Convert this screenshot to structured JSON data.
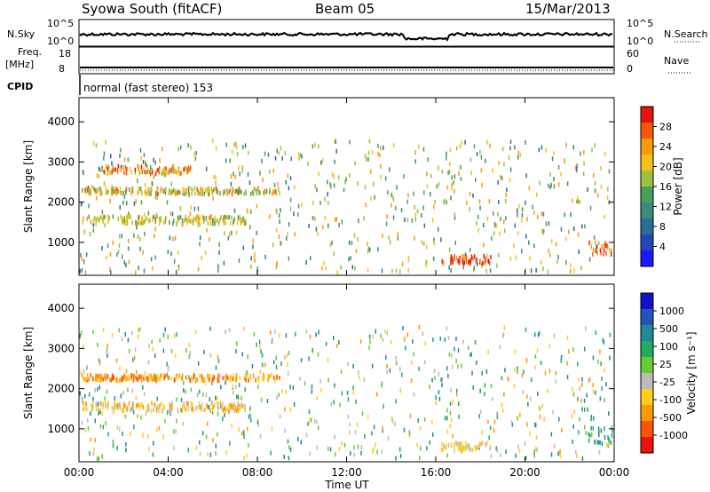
{
  "header": {
    "title": "Syowa South (fitACF)",
    "beam": "Beam 05",
    "date": "15/Mar/2013"
  },
  "side_labels": {
    "nsky": "N.Sky",
    "freq": "Freq.",
    "freq_unit": "[MHz]",
    "cpid": "CPID",
    "nsearch": "N.Search",
    "nave": "Nave",
    "cpid_value": "normal (fast stereo) 153"
  },
  "strip_ticks": {
    "noise_left": [
      "10^5",
      "10^0"
    ],
    "noise_right": [
      "10^5",
      "10^0"
    ],
    "freq_left": [
      "18",
      "8"
    ],
    "freq_right": [
      "60",
      "0"
    ]
  },
  "x_axis": {
    "label": "Time UT",
    "ticks": [
      "00:00",
      "04:00",
      "08:00",
      "12:00",
      "16:00",
      "20:00",
      "00:00"
    ]
  },
  "chart_data": [
    {
      "type": "heatmap",
      "title": "",
      "xlabel": "Time UT",
      "ylabel": "Slant Range [km]",
      "x_range_hours": [
        0,
        24
      ],
      "ylim": [
        180,
        4600
      ],
      "yticks": [
        "1000",
        "2000",
        "3000",
        "4000"
      ],
      "colorbar": {
        "label": "Power [dB]",
        "range": [
          0,
          32
        ],
        "ticks": [
          "4",
          "8",
          "12",
          "16",
          "20",
          "24",
          "28"
        ],
        "colors": [
          "#1a1aff",
          "#2548b5",
          "#2a6e96",
          "#3b8c78",
          "#4aa05a",
          "#9ec23c",
          "#f4c21a",
          "#f79a10",
          "#f25a0a",
          "#e6140a"
        ]
      },
      "scatter_bands": [
        {
          "t": [
            0.1,
            7.5
          ],
          "r": [
            1500,
            1700
          ],
          "level": [
            0.45,
            0.75
          ]
        },
        {
          "t": [
            0.1,
            9.0
          ],
          "r": [
            2250,
            2400
          ],
          "level": [
            0.4,
            0.85
          ]
        },
        {
          "t": [
            0.8,
            5.0
          ],
          "r": [
            2750,
            2950
          ],
          "level": [
            0.55,
            0.95
          ]
        },
        {
          "t": [
            16.2,
            18.5
          ],
          "r": [
            520,
            720
          ],
          "level": [
            0.75,
            1.0
          ]
        },
        {
          "t": [
            22.8,
            23.9
          ],
          "r": [
            700,
            1100
          ],
          "level": [
            0.75,
            1.0
          ]
        }
      ],
      "background_range": [
        300,
        3600
      ]
    },
    {
      "type": "heatmap",
      "title": "",
      "xlabel": "Time UT",
      "ylabel": "Slant Range [km]",
      "x_range_hours": [
        0,
        24
      ],
      "ylim": [
        180,
        4600
      ],
      "yticks": [
        "1000",
        "2000",
        "3000",
        "4000"
      ],
      "colorbar": {
        "label": "Velocity [m s⁻¹]",
        "ticks": [
          "-1000",
          "-500",
          "-100",
          "-25",
          "25",
          "100",
          "500",
          "1000"
        ],
        "colors": [
          "#ee1111",
          "#ff5500",
          "#ff9900",
          "#ffcc22",
          "#bbbbbb",
          "#66cc33",
          "#22aa66",
          "#228899",
          "#2255bb",
          "#1111cc"
        ]
      },
      "scatter_bands": [
        {
          "t": [
            0.1,
            7.5
          ],
          "r": [
            1500,
            1700
          ],
          "level": [
            0.25,
            0.45
          ]
        },
        {
          "t": [
            0.1,
            9.0
          ],
          "r": [
            2250,
            2400
          ],
          "level": [
            0.1,
            0.4
          ]
        },
        {
          "t": [
            16.2,
            18.5
          ],
          "r": [
            520,
            720
          ],
          "level": [
            0.3,
            0.45
          ]
        },
        {
          "t": [
            22.8,
            23.9
          ],
          "r": [
            700,
            1100
          ],
          "level": [
            0.55,
            0.75
          ]
        }
      ],
      "background_range": [
        300,
        3600
      ]
    }
  ]
}
